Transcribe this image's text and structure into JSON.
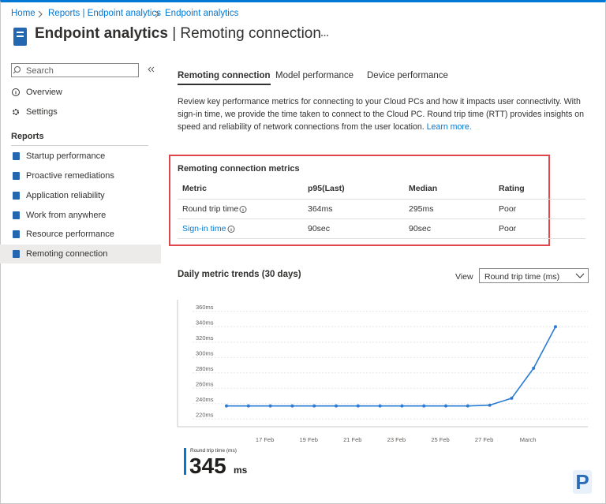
{
  "breadcrumb": [
    "Home",
    "Reports | Endpoint analytics",
    "Endpoint analytics"
  ],
  "header": {
    "title": "Endpoint analytics",
    "separator": "|",
    "subtitle": "Remoting connection"
  },
  "sidebar": {
    "search_placeholder": "Search",
    "items": [
      "Overview",
      "Settings"
    ],
    "section": "Reports",
    "reports": [
      "Startup performance",
      "Proactive remediations",
      "Application reliability",
      "Work from anywhere",
      "Resource performance",
      "Remoting connection"
    ]
  },
  "tabs": [
    "Remoting connection",
    "Model performance",
    "Device performance"
  ],
  "description": "Review key performance metrics for connecting to your Cloud PCs and how it impacts user connectivity. With sign-in time, we provide the time taken to connect to the Cloud PC. Round trip time (RTT) provides insights on speed and reliability of network connections from the user location.",
  "learn_more": "Learn more.",
  "metrics": {
    "title": "Remoting connection metrics",
    "columns": [
      "Metric",
      "p95(Last)",
      "Median",
      "Rating"
    ],
    "rows": [
      [
        "Round trip time",
        "364ms",
        "295ms",
        "Poor"
      ],
      [
        "Sign-in time",
        "90sec",
        "90sec",
        "Poor"
      ]
    ]
  },
  "trends": {
    "title": "Daily metric trends (30 days)",
    "view_label": "View",
    "view_selected": "Round trip time (ms)"
  },
  "chart_data": {
    "type": "line",
    "categories": [
      null,
      null,
      "17 Feb",
      null,
      "19 Feb",
      null,
      "21 Feb",
      null,
      "23 Feb",
      null,
      "25 Feb",
      null,
      "27 Feb",
      null,
      "March",
      null
    ],
    "values": [
      237,
      237,
      237,
      237,
      237,
      237,
      237,
      237,
      237,
      237,
      237,
      237,
      238,
      247,
      286,
      340
    ],
    "color": "#2b7cd3",
    "ylim": [
      210,
      370
    ],
    "yticks": [
      {
        "value": 220,
        "label": "220ms"
      },
      {
        "value": 240,
        "label": "240ms"
      },
      {
        "value": 260,
        "label": "260ms"
      },
      {
        "value": 280,
        "label": "280ms"
      },
      {
        "value": 300,
        "label": "300ms"
      },
      {
        "value": 320,
        "label": "320ms"
      },
      {
        "value": 340,
        "label": "340ms"
      },
      {
        "value": 360,
        "label": "360ms"
      }
    ],
    "grid": true
  },
  "summary": {
    "label": "Round trip time (ms)",
    "value": 345,
    "unit": "ms"
  }
}
